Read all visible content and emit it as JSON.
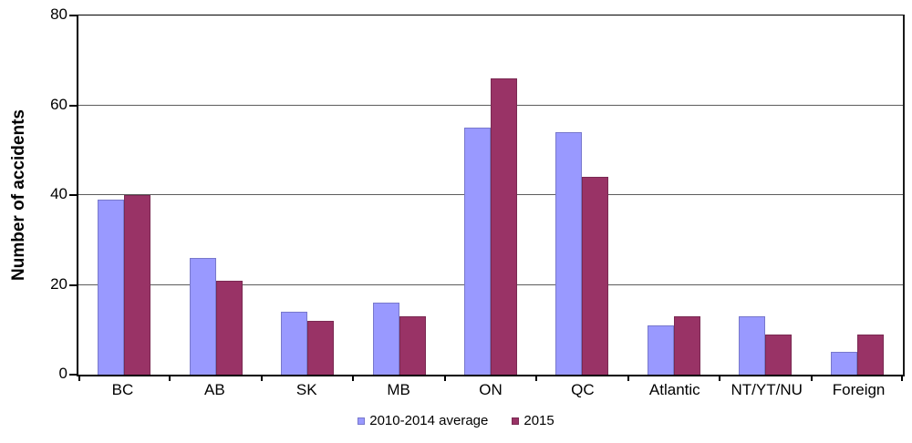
{
  "chart_data": {
    "type": "bar",
    "title": "",
    "xlabel": "",
    "ylabel": "Number of accidents",
    "categories": [
      "BC",
      "AB",
      "SK",
      "MB",
      "ON",
      "QC",
      "Atlantic",
      "NT/YT/NU",
      "Foreign"
    ],
    "series": [
      {
        "name": "2010-2014 average",
        "color": "#9999FF",
        "border_color": "#7878CC",
        "values": [
          39,
          26,
          14,
          16,
          55,
          54,
          11,
          13,
          5
        ]
      },
      {
        "name": "2015",
        "color": "#993366",
        "border_color": "#7A2952",
        "values": [
          40,
          21,
          12,
          13,
          66,
          44,
          13,
          9,
          9
        ]
      }
    ],
    "ylim": [
      0,
      80
    ],
    "yticks": [
      0,
      20,
      40,
      60,
      80
    ],
    "grid": "horizontal",
    "gridline_color": "#5c5c5c",
    "axis_color": "#000000",
    "legend_position": "bottom"
  }
}
